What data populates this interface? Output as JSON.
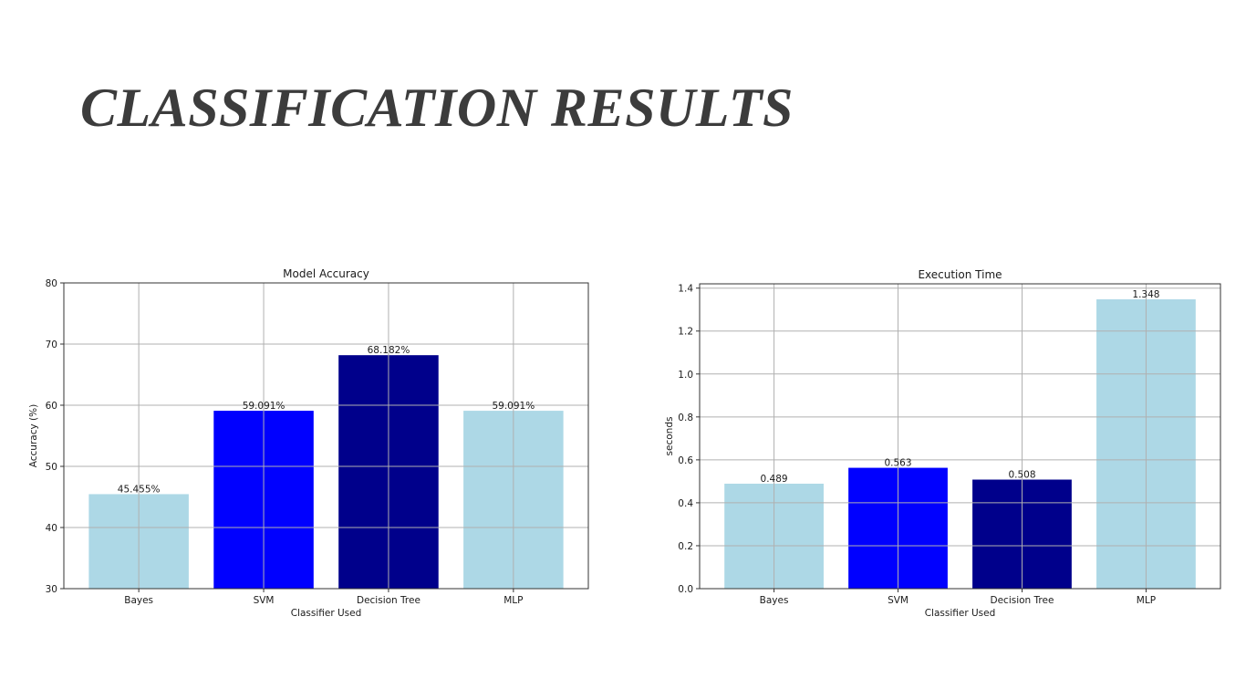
{
  "slide": {
    "title": "CLASSIFICATION RESULTS"
  },
  "chart_data": [
    {
      "type": "bar",
      "title": "Model Accuracy",
      "xlabel": "Classifier Used",
      "ylabel": "Accuracy (%)",
      "categories": [
        "Bayes",
        "SVM",
        "Decision Tree",
        "MLP"
      ],
      "values": [
        45.455,
        59.091,
        68.182,
        59.091
      ],
      "value_labels": [
        "45.455%",
        "59.091%",
        "68.182%",
        "59.091%"
      ],
      "bar_colors": [
        "#add8e6",
        "#0000ff",
        "#00008b",
        "#add8e6"
      ],
      "ylim": [
        30,
        80
      ],
      "yticks": [
        30,
        40,
        50,
        60,
        70,
        80
      ],
      "ytick_labels": [
        "30",
        "40",
        "50",
        "60",
        "70",
        "80"
      ],
      "grid": true
    },
    {
      "type": "bar",
      "title": "Execution Time",
      "xlabel": "Classifier Used",
      "ylabel": "seconds",
      "categories": [
        "Bayes",
        "SVM",
        "Decision Tree",
        "MLP"
      ],
      "values": [
        0.489,
        0.563,
        0.508,
        1.348
      ],
      "value_labels": [
        "0.489",
        "0.563",
        "0.508",
        "1.348"
      ],
      "bar_colors": [
        "#add8e6",
        "#0000ff",
        "#00008b",
        "#add8e6"
      ],
      "ylim": [
        0,
        1.42
      ],
      "yticks": [
        0,
        0.2,
        0.4,
        0.6,
        0.8,
        1.0,
        1.2,
        1.4
      ],
      "ytick_labels": [
        "0.0",
        "0.2",
        "0.4",
        "0.6",
        "0.8",
        "1.0",
        "1.2",
        "1.4"
      ],
      "grid": true
    }
  ]
}
